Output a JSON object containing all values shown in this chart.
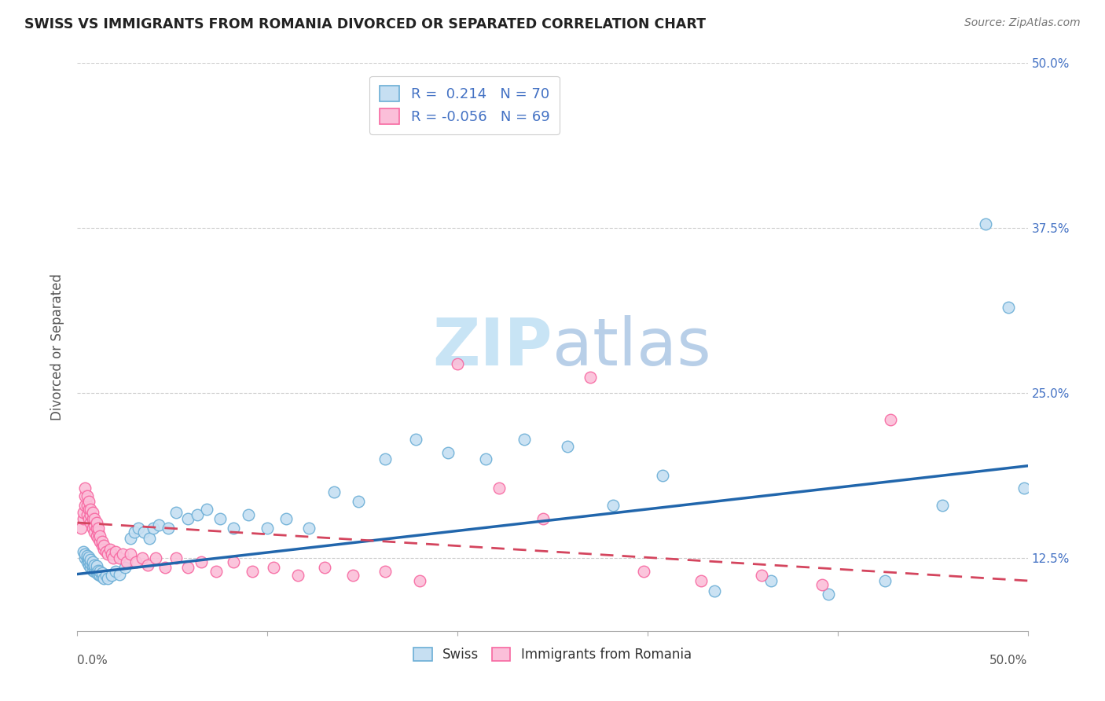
{
  "title": "SWISS VS IMMIGRANTS FROM ROMANIA DIVORCED OR SEPARATED CORRELATION CHART",
  "source": "Source: ZipAtlas.com",
  "ylabel": "Divorced or Separated",
  "xlim": [
    0.0,
    0.5
  ],
  "ylim": [
    0.07,
    0.5
  ],
  "yticks": [
    0.125,
    0.25,
    0.375,
    0.5
  ],
  "ytick_labels": [
    "12.5%",
    "25.0%",
    "37.5%",
    "50.0%"
  ],
  "swiss_R": 0.214,
  "swiss_N": 70,
  "romania_R": -0.056,
  "romania_N": 69,
  "swiss_color": "#6baed6",
  "swiss_color_fill": "#c6dff2",
  "romania_color": "#f768a1",
  "romania_color_fill": "#fbbfd9",
  "swiss_line_color": "#2166ac",
  "romania_line_color": "#d4455e",
  "watermark_color": "#c8e4f5",
  "swiss_x": [
    0.003,
    0.004,
    0.004,
    0.005,
    0.005,
    0.005,
    0.006,
    0.006,
    0.006,
    0.007,
    0.007,
    0.007,
    0.008,
    0.008,
    0.008,
    0.009,
    0.009,
    0.009,
    0.01,
    0.01,
    0.01,
    0.011,
    0.011,
    0.012,
    0.012,
    0.013,
    0.013,
    0.014,
    0.015,
    0.016,
    0.018,
    0.02,
    0.022,
    0.025,
    0.028,
    0.03,
    0.032,
    0.035,
    0.038,
    0.04,
    0.043,
    0.048,
    0.052,
    0.058,
    0.063,
    0.068,
    0.075,
    0.082,
    0.09,
    0.1,
    0.11,
    0.122,
    0.135,
    0.148,
    0.162,
    0.178,
    0.195,
    0.215,
    0.235,
    0.258,
    0.282,
    0.308,
    0.335,
    0.365,
    0.395,
    0.425,
    0.455,
    0.478,
    0.49,
    0.498
  ],
  "swiss_y": [
    0.13,
    0.125,
    0.128,
    0.122,
    0.125,
    0.127,
    0.12,
    0.123,
    0.126,
    0.118,
    0.121,
    0.124,
    0.116,
    0.119,
    0.122,
    0.115,
    0.118,
    0.12,
    0.114,
    0.116,
    0.119,
    0.113,
    0.116,
    0.112,
    0.115,
    0.111,
    0.114,
    0.11,
    0.112,
    0.11,
    0.112,
    0.115,
    0.113,
    0.118,
    0.14,
    0.145,
    0.148,
    0.145,
    0.14,
    0.148,
    0.15,
    0.148,
    0.16,
    0.155,
    0.158,
    0.162,
    0.155,
    0.148,
    0.158,
    0.148,
    0.155,
    0.148,
    0.175,
    0.168,
    0.2,
    0.215,
    0.205,
    0.2,
    0.215,
    0.21,
    0.165,
    0.188,
    0.1,
    0.108,
    0.098,
    0.108,
    0.165,
    0.378,
    0.315,
    0.178
  ],
  "romania_x": [
    0.002,
    0.003,
    0.003,
    0.004,
    0.004,
    0.004,
    0.005,
    0.005,
    0.005,
    0.006,
    0.006,
    0.006,
    0.007,
    0.007,
    0.007,
    0.008,
    0.008,
    0.008,
    0.009,
    0.009,
    0.009,
    0.01,
    0.01,
    0.01,
    0.011,
    0.011,
    0.011,
    0.012,
    0.012,
    0.013,
    0.013,
    0.014,
    0.014,
    0.015,
    0.016,
    0.017,
    0.018,
    0.019,
    0.02,
    0.022,
    0.024,
    0.026,
    0.028,
    0.031,
    0.034,
    0.037,
    0.041,
    0.046,
    0.052,
    0.058,
    0.065,
    0.073,
    0.082,
    0.092,
    0.103,
    0.116,
    0.13,
    0.145,
    0.162,
    0.18,
    0.2,
    0.222,
    0.245,
    0.27,
    0.298,
    0.328,
    0.36,
    0.392,
    0.428
  ],
  "romania_y": [
    0.148,
    0.155,
    0.16,
    0.165,
    0.172,
    0.178,
    0.158,
    0.165,
    0.172,
    0.155,
    0.162,
    0.168,
    0.152,
    0.158,
    0.162,
    0.148,
    0.155,
    0.16,
    0.145,
    0.15,
    0.155,
    0.142,
    0.148,
    0.152,
    0.14,
    0.145,
    0.148,
    0.138,
    0.142,
    0.135,
    0.138,
    0.132,
    0.135,
    0.13,
    0.128,
    0.132,
    0.128,
    0.125,
    0.13,
    0.125,
    0.128,
    0.122,
    0.128,
    0.122,
    0.125,
    0.12,
    0.125,
    0.118,
    0.125,
    0.118,
    0.122,
    0.115,
    0.122,
    0.115,
    0.118,
    0.112,
    0.118,
    0.112,
    0.115,
    0.108,
    0.272,
    0.178,
    0.155,
    0.262,
    0.115,
    0.108,
    0.112,
    0.105,
    0.23
  ]
}
